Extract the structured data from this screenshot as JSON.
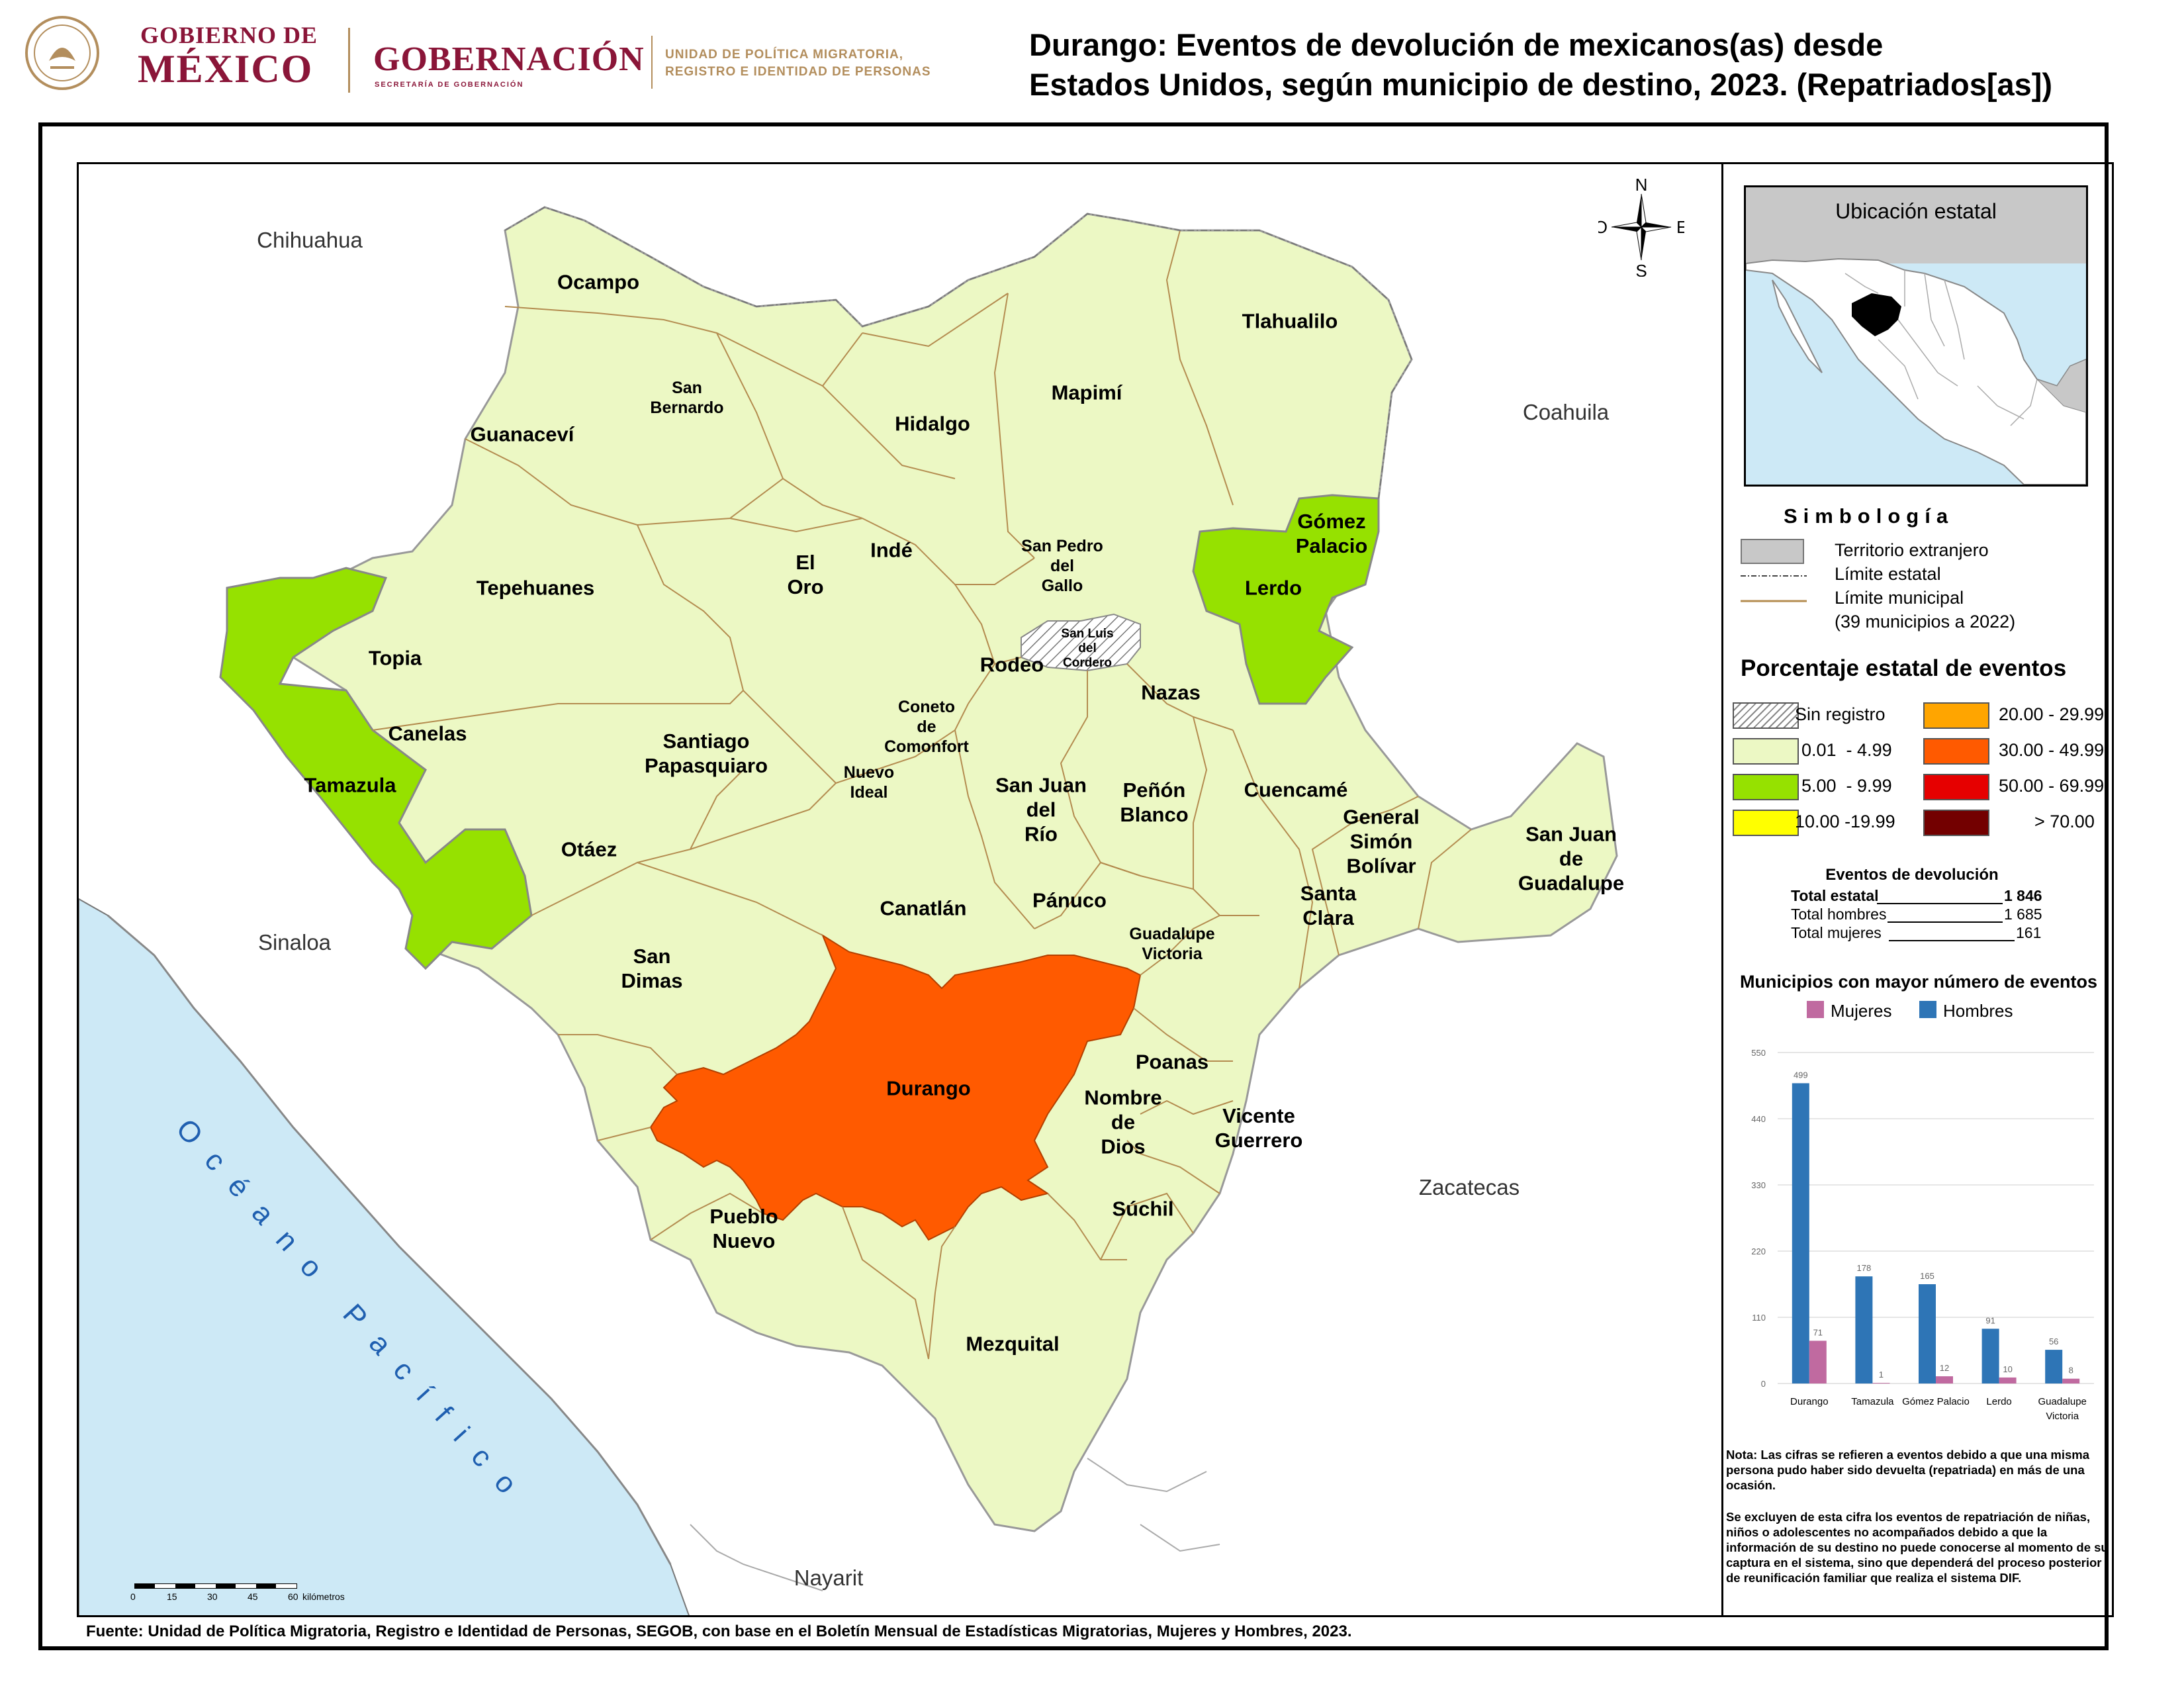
{
  "header": {
    "logo_gob_line1": "GOBIERNO DE",
    "logo_gob_line2": "MÉXICO",
    "logo_gobernacion": "GOBERNACIÓN",
    "logo_gobernacion_sub": "SECRETARÍA DE GOBERNACIÓN",
    "logo_unit_line1": "UNIDAD DE POLÍTICA MIGRATORIA,",
    "logo_unit_line2": "REGISTRO E IDENTIDAD DE PERSONAS",
    "title_line1": "Durango: Eventos de devolución de mexicanos(as) desde",
    "title_line2": "Estados Unidos, según municipio de destino, 2023. (Repatriados[as])"
  },
  "map": {
    "states": {
      "chihuahua": "Chihuahua",
      "coahuila": "Coahuila",
      "sinaloa": "Sinaloa",
      "zacatecas": "Zacatecas",
      "nayarit": "Nayarit"
    },
    "ocean": "Océano Pacífico",
    "compass": {
      "n": "N",
      "s": "S",
      "e": "E",
      "o": "O"
    },
    "scale": {
      "ticks": [
        "0",
        "15",
        "30",
        "45",
        "60"
      ],
      "unit": "kilómetros"
    },
    "municipalities": [
      {
        "name": "Ocampo",
        "class": "0.01 - 4.99"
      },
      {
        "name": "San\nBernardo",
        "class": "0.01 - 4.99"
      },
      {
        "name": "Guanaceví",
        "class": "0.01 - 4.99"
      },
      {
        "name": "Hidalgo",
        "class": "0.01 - 4.99"
      },
      {
        "name": "Mapimí",
        "class": "0.01 - 4.99"
      },
      {
        "name": "Tlahualilo",
        "class": "0.01 - 4.99"
      },
      {
        "name": "Gómez\nPalacio",
        "class": "5.00 - 9.99"
      },
      {
        "name": "Lerdo",
        "class": "5.00 - 9.99"
      },
      {
        "name": "Tepehuanes",
        "class": "0.01 - 4.99"
      },
      {
        "name": "El\nOro",
        "class": "0.01 - 4.99"
      },
      {
        "name": "Indé",
        "class": "0.01 - 4.99"
      },
      {
        "name": "San Pedro\ndel\nGallo",
        "class": "0.01 - 4.99"
      },
      {
        "name": "San Luis\ndel\nCordero",
        "class": "Sin registro"
      },
      {
        "name": "Topia",
        "class": "0.01 - 4.99"
      },
      {
        "name": "Rodeo",
        "class": "0.01 - 4.99"
      },
      {
        "name": "Nazas",
        "class": "0.01 - 4.99"
      },
      {
        "name": "Canelas",
        "class": "0.01 - 4.99"
      },
      {
        "name": "Coneto\nde\nComonfort",
        "class": "0.01 - 4.99"
      },
      {
        "name": "Santiago\nPapasquiaro",
        "class": "0.01 - 4.99"
      },
      {
        "name": "Tamazula",
        "class": "5.00 - 9.99"
      },
      {
        "name": "Nuevo\nIdeal",
        "class": "0.01 - 4.99"
      },
      {
        "name": "San Juan\ndel\nRío",
        "class": "0.01 - 4.99"
      },
      {
        "name": "Peñón\nBlanco",
        "class": "0.01 - 4.99"
      },
      {
        "name": "Cuencamé",
        "class": "0.01 - 4.99"
      },
      {
        "name": "General\nSimón\nBolívar",
        "class": "0.01 - 4.99"
      },
      {
        "name": "San Juan\nde\nGuadalupe",
        "class": "0.01 - 4.99"
      },
      {
        "name": "Otáez",
        "class": "0.01 - 4.99"
      },
      {
        "name": "Santa\nClara",
        "class": "0.01 - 4.99"
      },
      {
        "name": "Canatlán",
        "class": "0.01 - 4.99"
      },
      {
        "name": "Pánuco",
        "class": "0.01 - 4.99"
      },
      {
        "name": "Guadalupe\nVictoria",
        "class": "0.01 - 4.99"
      },
      {
        "name": "San\nDimas",
        "class": "0.01 - 4.99"
      },
      {
        "name": "Durango",
        "class": "30.00 - 49.99"
      },
      {
        "name": "Poanas",
        "class": "0.01 - 4.99"
      },
      {
        "name": "Nombre\nde\nDios",
        "class": "0.01 - 4.99"
      },
      {
        "name": "Vicente\nGuerrero",
        "class": "0.01 - 4.99"
      },
      {
        "name": "Súchil",
        "class": "0.01 - 4.99"
      },
      {
        "name": "Pueblo\nNuevo",
        "class": "0.01 - 4.99"
      },
      {
        "name": "Mezquital",
        "class": "0.01 - 4.99"
      }
    ]
  },
  "panel": {
    "inset_title": "Ubicación estatal",
    "simbologia_title": "Simbología",
    "legend": {
      "foreign": "Territorio extranjero",
      "state_limit": "Límite estatal",
      "mun_limit": "Límite municipal",
      "mun_count": "(39 municipios a 2022)"
    },
    "pct_title": "Porcentaje estatal de eventos",
    "classes": [
      {
        "label": "Sin registro",
        "color": "hatch"
      },
      {
        "label": "20.00 - 29.99",
        "color": "#ffa500"
      },
      {
        "label": "0.01  - 4.99",
        "color": "#ecf8c4"
      },
      {
        "label": "30.00 - 49.99",
        "color": "#ff5a00"
      },
      {
        "label": "5.00  - 9.99",
        "color": "#96e100"
      },
      {
        "label": "50.00 - 69.99",
        "color": "#e60000"
      },
      {
        "label": "10.00 -19.99",
        "color": "#ffff00"
      },
      {
        "label": "> 70.00",
        "color": "#730000"
      }
    ],
    "events": {
      "title": "Eventos de devolución",
      "total_label": "Total estatal",
      "total_value": "1 846",
      "men_label": "Total hombres",
      "men_value": "1 685",
      "women_label": "Total mujeres",
      "women_value": "161"
    },
    "chart_title": "Municipios con mayor número de eventos",
    "note1": "Nota: Las cifras se refieren a eventos debido a que una misma persona pudo haber sido devuelta (repatriada) en más de una ocasión.",
    "note2": "Se excluyen de esta cifra los eventos de repatriación de niñas, niños o adolescentes no acompañados debido a que la información de su destino no puede conocerse al momento de su captura en el sistema, sino que dependerá del proceso posterior de reunificación familiar que realiza el sistema DIF."
  },
  "colors": {
    "low": "#ecf8c4",
    "mid": "#96e100",
    "high": "#ff5a00",
    "foreign": "#c8c8c8",
    "ocean": "#cde9f6",
    "women": "#c06aa0",
    "men": "#2e75b6",
    "border": "#b48c50"
  },
  "chart_data": {
    "type": "bar",
    "title": "Municipios con mayor número de eventos",
    "categories": [
      "Durango",
      "Tamazula",
      "Gómez Palacio",
      "Lerdo",
      "Guadalupe Victoria"
    ],
    "series": [
      {
        "name": "Mujeres",
        "values": [
          71,
          1,
          12,
          10,
          8
        ],
        "color": "#c06aa0"
      },
      {
        "name": "Hombres",
        "values": [
          499,
          178,
          165,
          91,
          56
        ],
        "color": "#2e75b6"
      }
    ],
    "yticks": [
      "0",
      "110",
      "220",
      "330",
      "440",
      "550"
    ],
    "ylim": [
      0,
      550
    ],
    "legend": "top"
  },
  "footer": {
    "source": "Fuente: Unidad de Política Migratoria, Registro e Identidad de Personas, SEGOB, con base en el Boletín Mensual de Estadísticas Migratorias, Mujeres y Hombres, 2023."
  }
}
